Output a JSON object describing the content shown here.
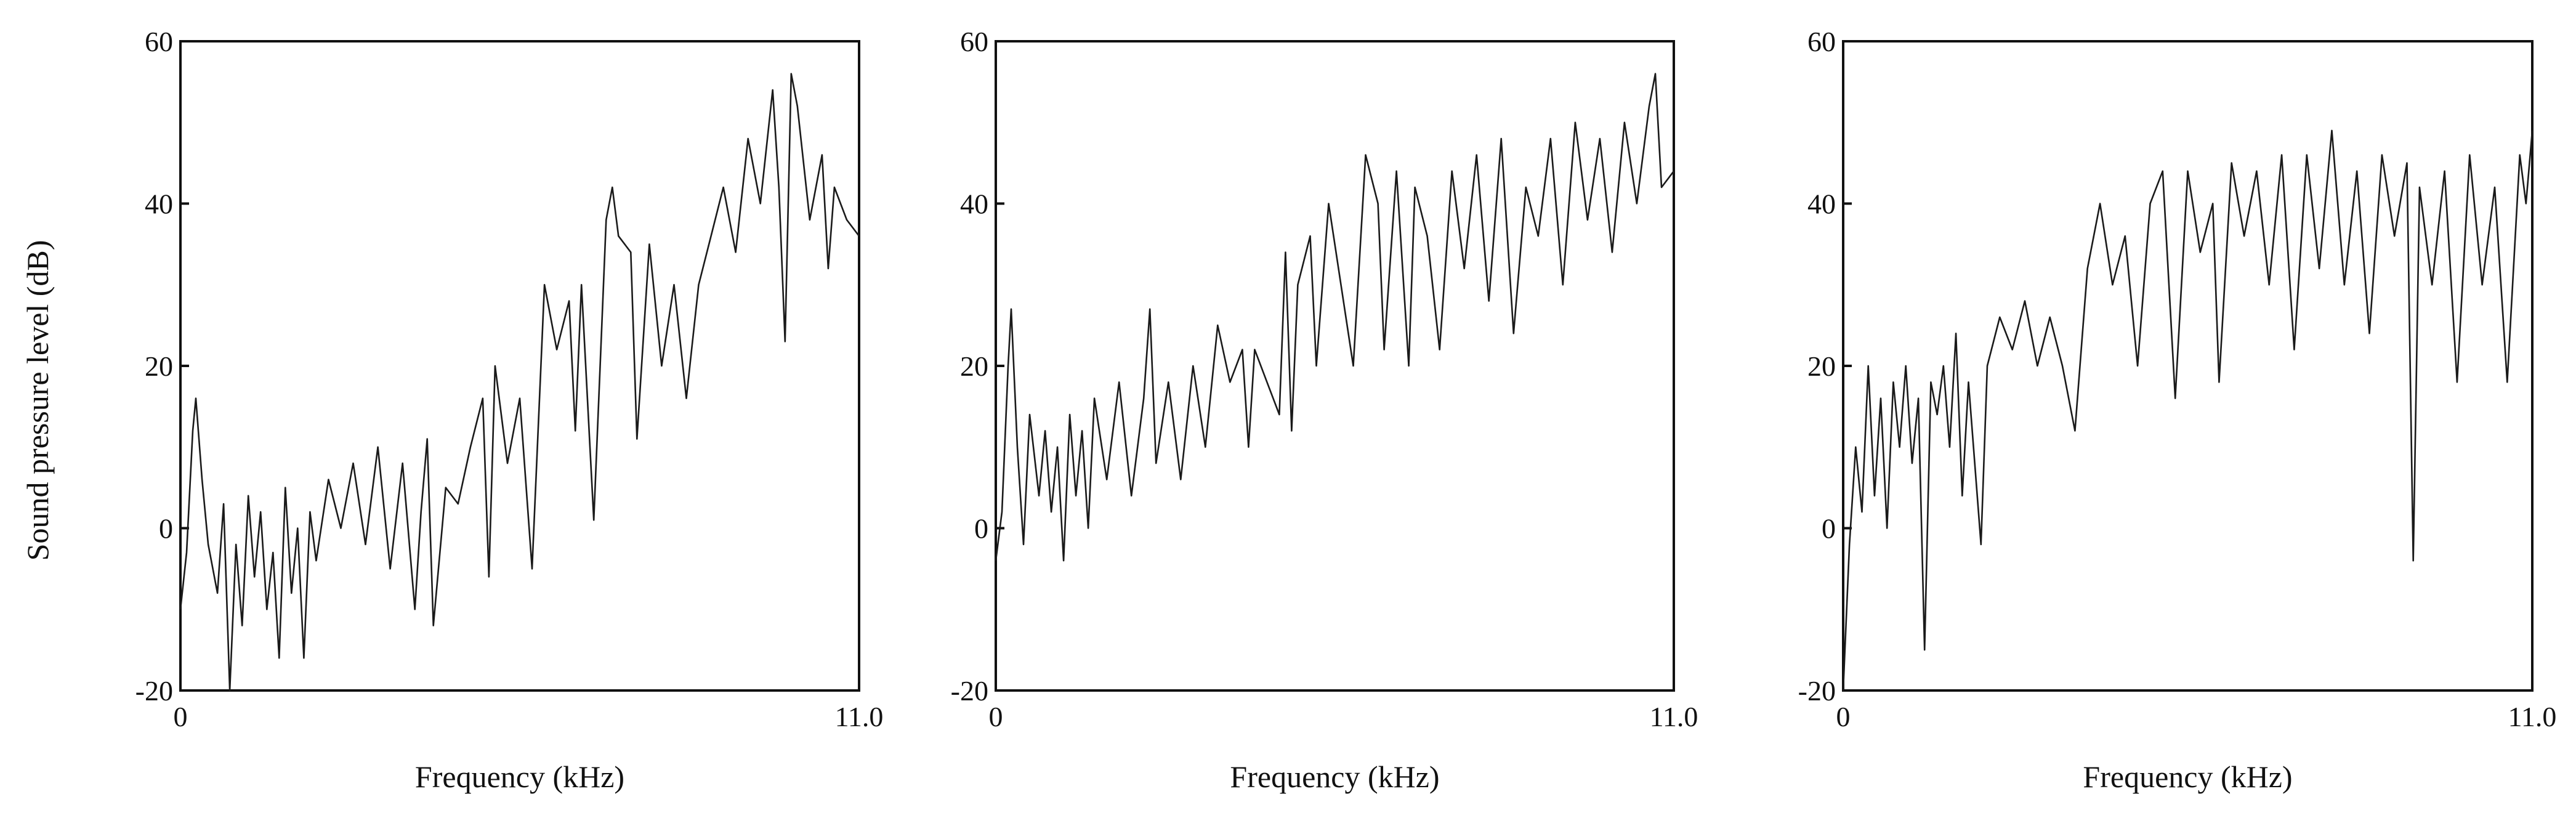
{
  "ylabel": "Sound pressure level (dB)",
  "chart_data": [
    {
      "type": "line",
      "xlabel": "Frequency (kHz)",
      "xlim": [
        0,
        11.0
      ],
      "ylim": [
        -20,
        60
      ],
      "xticks": [
        "0",
        "11.0"
      ],
      "yticks": [
        "60",
        "40",
        "20",
        "0",
        "-20"
      ],
      "series": [
        {
          "points": [
            [
              0.0,
              -10
            ],
            [
              0.1,
              -3
            ],
            [
              0.2,
              12
            ],
            [
              0.25,
              16
            ],
            [
              0.35,
              6
            ],
            [
              0.45,
              -2
            ],
            [
              0.6,
              -8
            ],
            [
              0.7,
              3
            ],
            [
              0.8,
              -20
            ],
            [
              0.9,
              -2
            ],
            [
              1.0,
              -12
            ],
            [
              1.1,
              4
            ],
            [
              1.2,
              -6
            ],
            [
              1.3,
              2
            ],
            [
              1.4,
              -10
            ],
            [
              1.5,
              -3
            ],
            [
              1.6,
              -16
            ],
            [
              1.7,
              5
            ],
            [
              1.8,
              -8
            ],
            [
              1.9,
              0
            ],
            [
              2.0,
              -16
            ],
            [
              2.1,
              2
            ],
            [
              2.2,
              -4
            ],
            [
              2.4,
              6
            ],
            [
              2.6,
              0
            ],
            [
              2.8,
              8
            ],
            [
              3.0,
              -2
            ],
            [
              3.2,
              10
            ],
            [
              3.4,
              -5
            ],
            [
              3.6,
              8
            ],
            [
              3.8,
              -10
            ],
            [
              3.9,
              2
            ],
            [
              4.0,
              11
            ],
            [
              4.1,
              -12
            ],
            [
              4.3,
              5
            ],
            [
              4.5,
              3
            ],
            [
              4.7,
              10
            ],
            [
              4.9,
              16
            ],
            [
              5.0,
              -6
            ],
            [
              5.1,
              20
            ],
            [
              5.3,
              8
            ],
            [
              5.5,
              16
            ],
            [
              5.7,
              -5
            ],
            [
              5.9,
              30
            ],
            [
              6.1,
              22
            ],
            [
              6.3,
              28
            ],
            [
              6.4,
              12
            ],
            [
              6.5,
              30
            ],
            [
              6.7,
              1
            ],
            [
              6.9,
              38
            ],
            [
              7.0,
              42
            ],
            [
              7.1,
              36
            ],
            [
              7.3,
              34
            ],
            [
              7.4,
              11
            ],
            [
              7.6,
              35
            ],
            [
              7.8,
              20
            ],
            [
              8.0,
              30
            ],
            [
              8.2,
              16
            ],
            [
              8.4,
              30
            ],
            [
              8.6,
              36
            ],
            [
              8.8,
              42
            ],
            [
              9.0,
              34
            ],
            [
              9.2,
              48
            ],
            [
              9.4,
              40
            ],
            [
              9.6,
              54
            ],
            [
              9.7,
              42
            ],
            [
              9.8,
              23
            ],
            [
              9.9,
              56
            ],
            [
              10.0,
              52
            ],
            [
              10.2,
              38
            ],
            [
              10.4,
              46
            ],
            [
              10.5,
              32
            ],
            [
              10.6,
              42
            ],
            [
              10.8,
              38
            ],
            [
              11.0,
              36
            ]
          ]
        }
      ]
    },
    {
      "type": "line",
      "xlabel": "Frequency (kHz)",
      "xlim": [
        0,
        11.0
      ],
      "ylim": [
        -20,
        60
      ],
      "xticks": [
        "0",
        "11.0"
      ],
      "yticks": [
        "60",
        "40",
        "20",
        "0",
        "-20"
      ],
      "series": [
        {
          "points": [
            [
              0.0,
              -4
            ],
            [
              0.1,
              2
            ],
            [
              0.2,
              20
            ],
            [
              0.25,
              27
            ],
            [
              0.35,
              10
            ],
            [
              0.45,
              -2
            ],
            [
              0.55,
              14
            ],
            [
              0.7,
              4
            ],
            [
              0.8,
              12
            ],
            [
              0.9,
              2
            ],
            [
              1.0,
              10
            ],
            [
              1.1,
              -4
            ],
            [
              1.2,
              14
            ],
            [
              1.3,
              4
            ],
            [
              1.4,
              12
            ],
            [
              1.5,
              0
            ],
            [
              1.6,
              16
            ],
            [
              1.8,
              6
            ],
            [
              2.0,
              18
            ],
            [
              2.2,
              4
            ],
            [
              2.4,
              16
            ],
            [
              2.5,
              27
            ],
            [
              2.6,
              8
            ],
            [
              2.8,
              18
            ],
            [
              3.0,
              6
            ],
            [
              3.2,
              20
            ],
            [
              3.4,
              10
            ],
            [
              3.6,
              25
            ],
            [
              3.8,
              18
            ],
            [
              4.0,
              22
            ],
            [
              4.1,
              10
            ],
            [
              4.2,
              22
            ],
            [
              4.4,
              18
            ],
            [
              4.6,
              14
            ],
            [
              4.7,
              34
            ],
            [
              4.8,
              12
            ],
            [
              4.9,
              30
            ],
            [
              5.1,
              36
            ],
            [
              5.2,
              20
            ],
            [
              5.4,
              40
            ],
            [
              5.6,
              30
            ],
            [
              5.8,
              20
            ],
            [
              6.0,
              46
            ],
            [
              6.2,
              40
            ],
            [
              6.3,
              22
            ],
            [
              6.5,
              44
            ],
            [
              6.7,
              20
            ],
            [
              6.8,
              42
            ],
            [
              7.0,
              36
            ],
            [
              7.2,
              22
            ],
            [
              7.4,
              44
            ],
            [
              7.6,
              32
            ],
            [
              7.8,
              46
            ],
            [
              8.0,
              28
            ],
            [
              8.2,
              48
            ],
            [
              8.4,
              24
            ],
            [
              8.6,
              42
            ],
            [
              8.8,
              36
            ],
            [
              9.0,
              48
            ],
            [
              9.2,
              30
            ],
            [
              9.4,
              50
            ],
            [
              9.6,
              38
            ],
            [
              9.8,
              48
            ],
            [
              10.0,
              34
            ],
            [
              10.2,
              50
            ],
            [
              10.4,
              40
            ],
            [
              10.6,
              52
            ],
            [
              10.7,
              56
            ],
            [
              10.8,
              42
            ],
            [
              11.0,
              44
            ]
          ]
        }
      ]
    },
    {
      "type": "line",
      "xlabel": "Frequency (kHz)",
      "xlim": [
        0,
        11.0
      ],
      "ylim": [
        -20,
        60
      ],
      "xticks": [
        "0",
        "11.0"
      ],
      "yticks": [
        "60",
        "40",
        "20",
        "0",
        "-20"
      ],
      "series": [
        {
          "points": [
            [
              0.0,
              -20
            ],
            [
              0.1,
              -2
            ],
            [
              0.2,
              10
            ],
            [
              0.3,
              2
            ],
            [
              0.4,
              20
            ],
            [
              0.5,
              4
            ],
            [
              0.6,
              16
            ],
            [
              0.7,
              0
            ],
            [
              0.8,
              18
            ],
            [
              0.9,
              10
            ],
            [
              1.0,
              20
            ],
            [
              1.1,
              8
            ],
            [
              1.2,
              16
            ],
            [
              1.3,
              -15
            ],
            [
              1.4,
              18
            ],
            [
              1.5,
              14
            ],
            [
              1.6,
              20
            ],
            [
              1.7,
              10
            ],
            [
              1.8,
              24
            ],
            [
              1.9,
              4
            ],
            [
              2.0,
              18
            ],
            [
              2.2,
              -2
            ],
            [
              2.3,
              20
            ],
            [
              2.5,
              26
            ],
            [
              2.7,
              22
            ],
            [
              2.9,
              28
            ],
            [
              3.1,
              20
            ],
            [
              3.3,
              26
            ],
            [
              3.5,
              20
            ],
            [
              3.7,
              12
            ],
            [
              3.9,
              32
            ],
            [
              4.1,
              40
            ],
            [
              4.3,
              30
            ],
            [
              4.5,
              36
            ],
            [
              4.7,
              20
            ],
            [
              4.9,
              40
            ],
            [
              5.1,
              44
            ],
            [
              5.3,
              16
            ],
            [
              5.5,
              44
            ],
            [
              5.7,
              34
            ],
            [
              5.9,
              40
            ],
            [
              6.0,
              18
            ],
            [
              6.2,
              45
            ],
            [
              6.4,
              36
            ],
            [
              6.6,
              44
            ],
            [
              6.8,
              30
            ],
            [
              7.0,
              46
            ],
            [
              7.2,
              22
            ],
            [
              7.4,
              46
            ],
            [
              7.6,
              32
            ],
            [
              7.8,
              49
            ],
            [
              8.0,
              30
            ],
            [
              8.2,
              44
            ],
            [
              8.4,
              24
            ],
            [
              8.6,
              46
            ],
            [
              8.8,
              36
            ],
            [
              9.0,
              45
            ],
            [
              9.1,
              -4
            ],
            [
              9.2,
              42
            ],
            [
              9.4,
              30
            ],
            [
              9.6,
              44
            ],
            [
              9.8,
              18
            ],
            [
              10.0,
              46
            ],
            [
              10.2,
              30
            ],
            [
              10.4,
              42
            ],
            [
              10.6,
              18
            ],
            [
              10.8,
              46
            ],
            [
              10.9,
              40
            ],
            [
              11.0,
              49
            ]
          ]
        }
      ]
    }
  ]
}
